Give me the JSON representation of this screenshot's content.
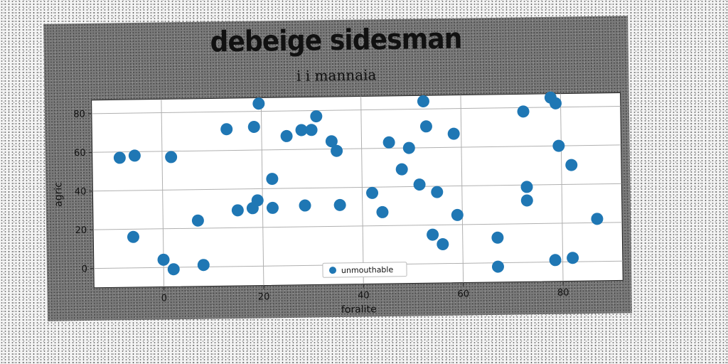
{
  "chart_data": {
    "type": "scatter",
    "title": "debeige sidesman",
    "subtitle": "i i mannaia",
    "xlabel": "foralite",
    "ylabel": "agric",
    "xlim": [
      -14,
      92
    ],
    "ylim": [
      -10,
      87
    ],
    "xticks": [
      0,
      20,
      40,
      60,
      80
    ],
    "yticks": [
      0,
      20,
      40,
      60,
      80
    ],
    "grid": true,
    "legend_position": "lower-center",
    "series": [
      {
        "name": "unmouthable",
        "color": "#1f77b4",
        "points": [
          [
            -8.5,
            57
          ],
          [
            -5.5,
            58
          ],
          [
            -6,
            16
          ],
          [
            0,
            4
          ],
          [
            2,
            -1
          ],
          [
            1.8,
            57
          ],
          [
            7,
            24
          ],
          [
            8,
            1
          ],
          [
            13,
            71
          ],
          [
            15,
            29
          ],
          [
            18,
            30
          ],
          [
            18.5,
            72
          ],
          [
            19,
            34
          ],
          [
            19.5,
            84
          ],
          [
            22,
            30
          ],
          [
            22,
            45
          ],
          [
            25,
            67
          ],
          [
            28,
            70
          ],
          [
            28.5,
            31
          ],
          [
            30,
            70
          ],
          [
            31,
            77
          ],
          [
            34,
            64
          ],
          [
            35,
            59
          ],
          [
            35.5,
            31
          ],
          [
            42,
            37
          ],
          [
            44,
            27
          ],
          [
            45.5,
            63
          ],
          [
            48,
            49
          ],
          [
            49.5,
            60
          ],
          [
            51.5,
            41
          ],
          [
            52.5,
            84
          ],
          [
            53,
            71
          ],
          [
            54,
            15
          ],
          [
            55,
            37
          ],
          [
            56,
            10
          ],
          [
            58.5,
            67
          ],
          [
            59,
            25
          ],
          [
            67,
            13
          ],
          [
            67,
            -2
          ],
          [
            72.5,
            78
          ],
          [
            73,
            39
          ],
          [
            73,
            32
          ],
          [
            78,
            85
          ],
          [
            79,
            82
          ],
          [
            79.5,
            60
          ],
          [
            78.5,
            1
          ],
          [
            82,
            2
          ],
          [
            82,
            50
          ],
          [
            87,
            22
          ]
        ]
      }
    ]
  }
}
